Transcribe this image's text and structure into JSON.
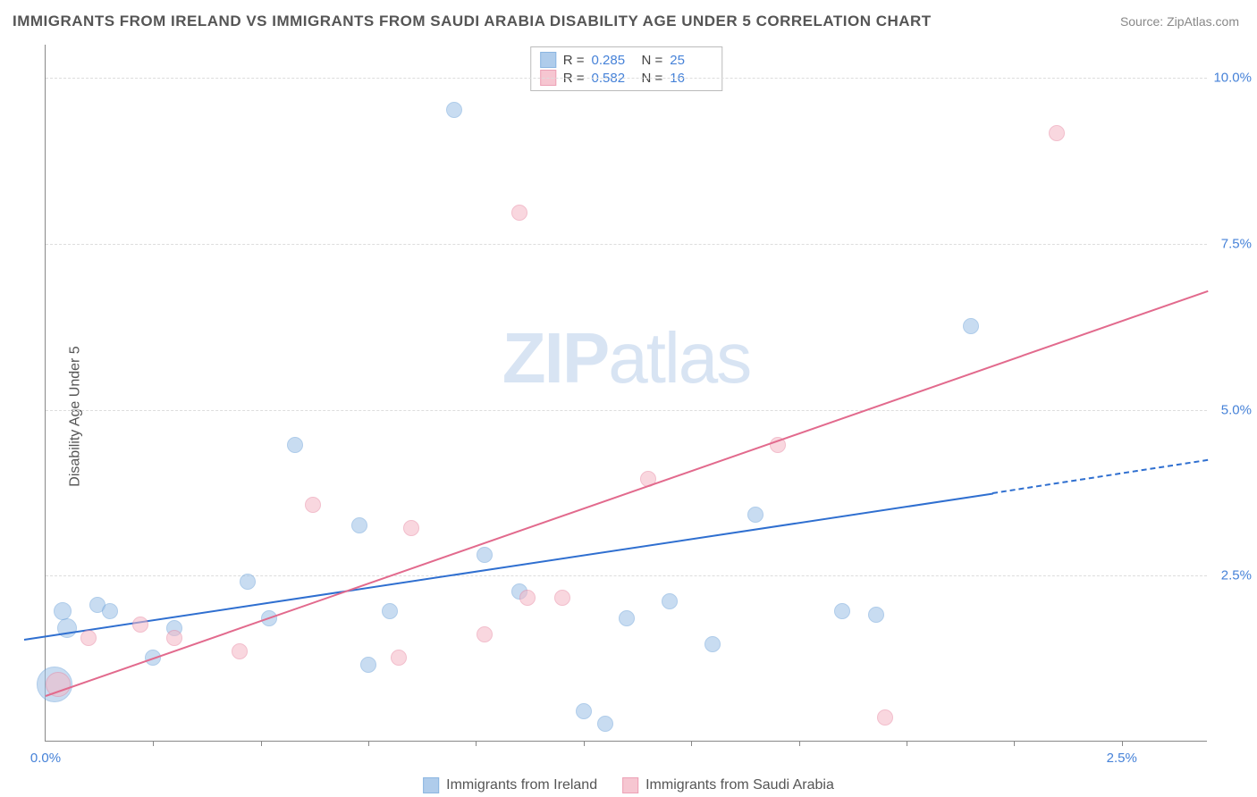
{
  "header": {
    "title": "IMMIGRANTS FROM IRELAND VS IMMIGRANTS FROM SAUDI ARABIA DISABILITY AGE UNDER 5 CORRELATION CHART",
    "source": "Source: ZipAtlas.com"
  },
  "chart": {
    "type": "scatter",
    "ylabel": "Disability Age Under 5",
    "watermark_bold": "ZIP",
    "watermark_rest": "atlas",
    "xlim": [
      0,
      2.7
    ],
    "ylim": [
      0,
      10.5
    ],
    "yticks": [
      {
        "v": 2.5,
        "label": "2.5%"
      },
      {
        "v": 5.0,
        "label": "5.0%"
      },
      {
        "v": 7.5,
        "label": "7.5%"
      },
      {
        "v": 10.0,
        "label": "10.0%"
      }
    ],
    "xticks_minor": [
      0.25,
      0.5,
      0.75,
      1.0,
      1.25,
      1.5,
      1.75,
      2.0,
      2.25,
      2.5
    ],
    "xticks_labeled": [
      {
        "v": 0.0,
        "label": "0.0%"
      },
      {
        "v": 2.5,
        "label": "2.5%"
      }
    ],
    "series": [
      {
        "key": "ireland",
        "label": "Immigrants from Ireland",
        "fill": "#9cc0e7",
        "stroke": "#6fa4da",
        "fill_opacity": 0.55,
        "R": "0.285",
        "N": "25",
        "trend": {
          "x1": -0.05,
          "y1": 1.55,
          "x2": 2.2,
          "y2": 3.75,
          "dash_to_x": 2.7,
          "dash_to_y": 4.25,
          "color": "#2f6fd0"
        },
        "points": [
          {
            "x": 0.02,
            "y": 0.85,
            "r": 20
          },
          {
            "x": 0.05,
            "y": 1.7,
            "r": 11
          },
          {
            "x": 0.04,
            "y": 1.95,
            "r": 10
          },
          {
            "x": 0.12,
            "y": 2.05,
            "r": 9
          },
          {
            "x": 0.15,
            "y": 1.95,
            "r": 9
          },
          {
            "x": 0.25,
            "y": 1.25,
            "r": 9
          },
          {
            "x": 0.3,
            "y": 1.7,
            "r": 9
          },
          {
            "x": 0.47,
            "y": 2.4,
            "r": 9
          },
          {
            "x": 0.52,
            "y": 1.85,
            "r": 9
          },
          {
            "x": 0.58,
            "y": 4.45,
            "r": 9
          },
          {
            "x": 0.73,
            "y": 3.25,
            "r": 9
          },
          {
            "x": 0.75,
            "y": 1.15,
            "r": 9
          },
          {
            "x": 0.8,
            "y": 1.95,
            "r": 9
          },
          {
            "x": 0.95,
            "y": 9.5,
            "r": 9
          },
          {
            "x": 1.02,
            "y": 2.8,
            "r": 9
          },
          {
            "x": 1.1,
            "y": 2.25,
            "r": 9
          },
          {
            "x": 1.25,
            "y": 0.45,
            "r": 9
          },
          {
            "x": 1.3,
            "y": 0.25,
            "r": 9
          },
          {
            "x": 1.35,
            "y": 1.85,
            "r": 9
          },
          {
            "x": 1.55,
            "y": 1.45,
            "r": 9
          },
          {
            "x": 1.65,
            "y": 3.4,
            "r": 9
          },
          {
            "x": 1.85,
            "y": 1.95,
            "r": 9
          },
          {
            "x": 1.93,
            "y": 1.9,
            "r": 9
          },
          {
            "x": 2.15,
            "y": 6.25,
            "r": 9
          },
          {
            "x": 1.45,
            "y": 2.1,
            "r": 9
          }
        ]
      },
      {
        "key": "saudi",
        "label": "Immigrants from Saudi Arabia",
        "fill": "#f5b8c6",
        "stroke": "#e98aa4",
        "fill_opacity": 0.55,
        "R": "0.582",
        "N": "16",
        "trend": {
          "x1": 0.0,
          "y1": 0.7,
          "x2": 2.7,
          "y2": 6.8,
          "color": "#e26a8d"
        },
        "points": [
          {
            "x": 0.03,
            "y": 0.85,
            "r": 14
          },
          {
            "x": 0.1,
            "y": 1.55,
            "r": 9
          },
          {
            "x": 0.22,
            "y": 1.75,
            "r": 9
          },
          {
            "x": 0.3,
            "y": 1.55,
            "r": 9
          },
          {
            "x": 0.45,
            "y": 1.35,
            "r": 9
          },
          {
            "x": 0.62,
            "y": 3.55,
            "r": 9
          },
          {
            "x": 0.82,
            "y": 1.25,
            "r": 9
          },
          {
            "x": 0.85,
            "y": 3.2,
            "r": 9
          },
          {
            "x": 1.02,
            "y": 1.6,
            "r": 9
          },
          {
            "x": 1.1,
            "y": 7.95,
            "r": 9
          },
          {
            "x": 1.2,
            "y": 2.15,
            "r": 9
          },
          {
            "x": 1.4,
            "y": 3.95,
            "r": 9
          },
          {
            "x": 1.7,
            "y": 4.45,
            "r": 9
          },
          {
            "x": 1.95,
            "y": 0.35,
            "r": 9
          },
          {
            "x": 2.35,
            "y": 9.15,
            "r": 9
          },
          {
            "x": 1.12,
            "y": 2.15,
            "r": 9
          }
        ]
      }
    ],
    "corrbox_labels": {
      "R": "R =",
      "N": "N ="
    }
  }
}
